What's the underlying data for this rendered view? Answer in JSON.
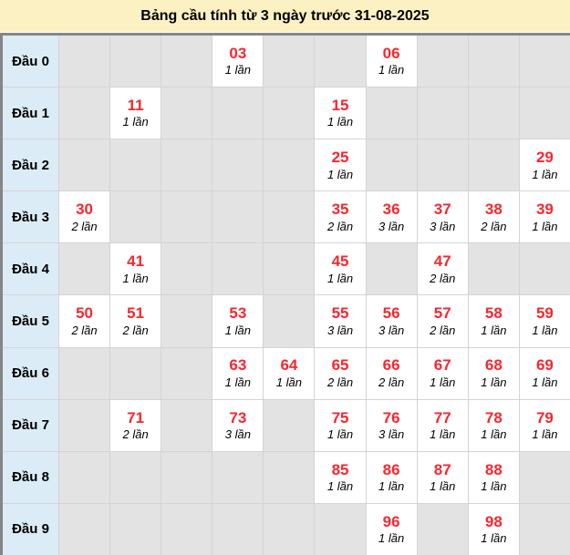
{
  "title": "Bảng cầu tính từ 3 ngày trước 31-08-2025",
  "colors": {
    "title_bg": "#fcf1c3",
    "frame_border": "#868686",
    "grid_line": "#d4d4d4",
    "header_col_bg": "#dcecf6",
    "empty_cell_bg": "#e3e3e3",
    "filled_cell_bg": "#ffffff",
    "number_color": "#f8262e",
    "count_color": "#000000"
  },
  "chart_data": {
    "type": "table",
    "title": "Bảng cầu tính từ 3 ngày trước 31-08-2025",
    "columns_per_row": 10,
    "rows": [
      {
        "label": "Đầu 0",
        "cells": [
          null,
          null,
          null,
          {
            "value": "03",
            "count": "1 lần"
          },
          null,
          null,
          {
            "value": "06",
            "count": "1 lần"
          },
          null,
          null,
          null
        ]
      },
      {
        "label": "Đầu 1",
        "cells": [
          null,
          {
            "value": "11",
            "count": "1 lần"
          },
          null,
          null,
          null,
          {
            "value": "15",
            "count": "1 lần"
          },
          null,
          null,
          null,
          null
        ]
      },
      {
        "label": "Đầu 2",
        "cells": [
          null,
          null,
          null,
          null,
          null,
          {
            "value": "25",
            "count": "1 lần"
          },
          null,
          null,
          null,
          {
            "value": "29",
            "count": "1 lần"
          }
        ]
      },
      {
        "label": "Đầu 3",
        "cells": [
          {
            "value": "30",
            "count": "2 lần"
          },
          null,
          null,
          null,
          null,
          {
            "value": "35",
            "count": "2 lần"
          },
          {
            "value": "36",
            "count": "3 lần"
          },
          {
            "value": "37",
            "count": "3 lần"
          },
          {
            "value": "38",
            "count": "2 lần"
          },
          {
            "value": "39",
            "count": "1 lần"
          }
        ]
      },
      {
        "label": "Đầu 4",
        "cells": [
          null,
          {
            "value": "41",
            "count": "1 lần"
          },
          null,
          null,
          null,
          {
            "value": "45",
            "count": "1 lần"
          },
          null,
          {
            "value": "47",
            "count": "2 lần"
          },
          null,
          null
        ]
      },
      {
        "label": "Đầu 5",
        "cells": [
          {
            "value": "50",
            "count": "2 lần"
          },
          {
            "value": "51",
            "count": "2 lần"
          },
          null,
          {
            "value": "53",
            "count": "1 lần"
          },
          null,
          {
            "value": "55",
            "count": "3 lần"
          },
          {
            "value": "56",
            "count": "3 lần"
          },
          {
            "value": "57",
            "count": "2 lần"
          },
          {
            "value": "58",
            "count": "1 lần"
          },
          {
            "value": "59",
            "count": "1 lần"
          }
        ]
      },
      {
        "label": "Đầu 6",
        "cells": [
          null,
          null,
          null,
          {
            "value": "63",
            "count": "1 lần"
          },
          {
            "value": "64",
            "count": "1 lần"
          },
          {
            "value": "65",
            "count": "2 lần"
          },
          {
            "value": "66",
            "count": "2 lần"
          },
          {
            "value": "67",
            "count": "1 lần"
          },
          {
            "value": "68",
            "count": "1 lần"
          },
          {
            "value": "69",
            "count": "1 lần"
          }
        ]
      },
      {
        "label": "Đầu 7",
        "cells": [
          null,
          {
            "value": "71",
            "count": "2 lần"
          },
          null,
          {
            "value": "73",
            "count": "3 lần"
          },
          null,
          {
            "value": "75",
            "count": "1 lần"
          },
          {
            "value": "76",
            "count": "3 lần"
          },
          {
            "value": "77",
            "count": "1 lần"
          },
          {
            "value": "78",
            "count": "1 lần"
          },
          {
            "value": "79",
            "count": "1 lần"
          }
        ]
      },
      {
        "label": "Đầu 8",
        "cells": [
          null,
          null,
          null,
          null,
          null,
          {
            "value": "85",
            "count": "1 lần"
          },
          {
            "value": "86",
            "count": "1 lần"
          },
          {
            "value": "87",
            "count": "1 lần"
          },
          {
            "value": "88",
            "count": "1 lần"
          },
          null
        ]
      },
      {
        "label": "Đầu 9",
        "cells": [
          null,
          null,
          null,
          null,
          null,
          null,
          {
            "value": "96",
            "count": "1 lần"
          },
          null,
          {
            "value": "98",
            "count": "1 lần"
          },
          null
        ]
      }
    ]
  }
}
